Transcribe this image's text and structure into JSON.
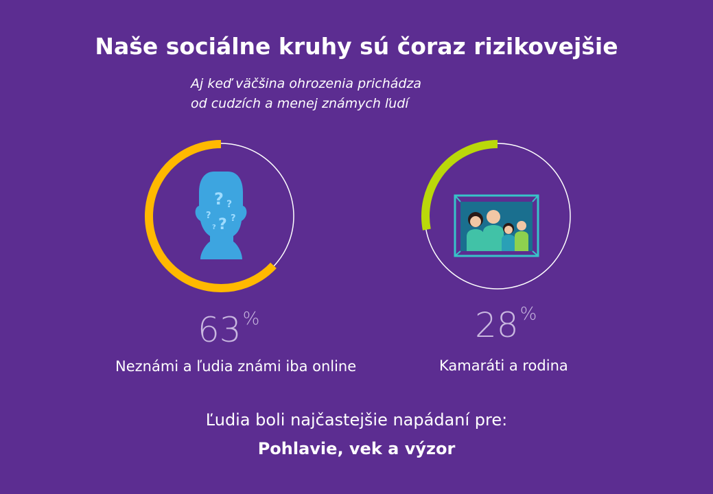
{
  "title": "Naše sociálne kruhy sú čoraz rizikovejšie",
  "subtitle": {
    "line1": "Aj keď väčšina ohrozenia prichádza",
    "line2": "od cudzích a menej známych ľudí"
  },
  "chart_data": {
    "type": "pie",
    "items": [
      {
        "label": "Neznámi a ľudia známi iba online",
        "value": 63,
        "unit": "%",
        "color": "#ffb900",
        "icon": "unknown-person-icon"
      },
      {
        "label": "Kamaráti a rodina",
        "value": 28,
        "unit": "%",
        "color": "#bad80a",
        "icon": "family-photo-icon"
      }
    ],
    "track_color": "#ffffff"
  },
  "footer": {
    "line1": "Ľudia boli najčastejšie napádaní pre:",
    "line2": "Pohlavie, vek a výzor"
  }
}
